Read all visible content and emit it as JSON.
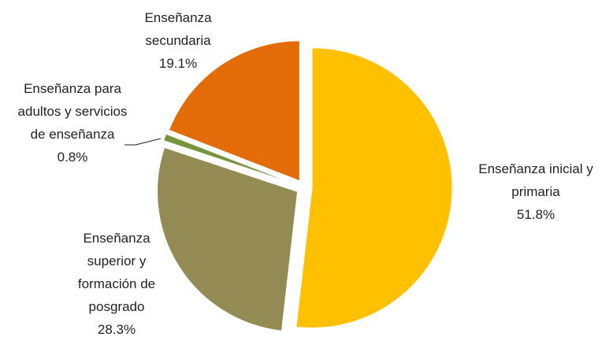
{
  "chart_data": {
    "type": "pie",
    "categories": [
      "Enseñanza inicial y primaria",
      "Enseñanza superior y formación de posgrado",
      "Enseñanza para adultos y servicios de enseñanza",
      "Enseñanza secundaria"
    ],
    "values": [
      51.8,
      28.3,
      0.8,
      19.1
    ],
    "value_labels": [
      "51.8%",
      "28.3%",
      "0.8%",
      "19.1%"
    ],
    "colors": [
      "#FFC000",
      "#948A54",
      "#77933C",
      "#E36C09"
    ]
  }
}
